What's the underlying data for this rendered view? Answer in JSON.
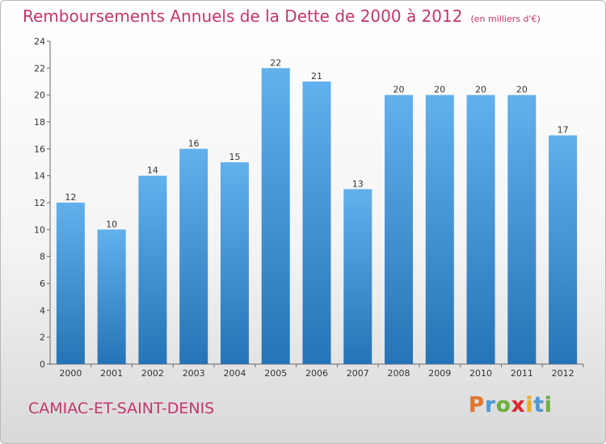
{
  "title": "Remboursements Annuels de la Dette de 2000 à 2012",
  "unit_note": "(en milliers d'€)",
  "commune": "CAMIAC-ET-SAINT-DENIS",
  "logo_text": "Proxiti",
  "logo_colors": [
    "#e8752a",
    "#4f9bd9",
    "#6bb33b",
    "#e0262b",
    "#f0b11d",
    "#4f9bd9",
    "#6bb33b"
  ],
  "colors": {
    "bar_top": "#62b0ec",
    "bar_bottom": "#2574b7",
    "axis_text": "#333333",
    "title": "#c2366f"
  },
  "chart_data": {
    "type": "bar",
    "categories": [
      "2000",
      "2001",
      "2002",
      "2003",
      "2004",
      "2005",
      "2006",
      "2007",
      "2008",
      "2009",
      "2010",
      "2011",
      "2012"
    ],
    "values": [
      12,
      10,
      14,
      16,
      15,
      22,
      21,
      13,
      20,
      20,
      20,
      20,
      17
    ],
    "data_labels": [
      "12",
      "10",
      "14",
      "16",
      "15",
      "22",
      "21",
      "13",
      "20",
      "20",
      "20",
      "20",
      "17"
    ],
    "y_ticks": [
      "0",
      "2",
      "4",
      "6",
      "8",
      "10",
      "12",
      "14",
      "16",
      "18",
      "20",
      "22",
      "24"
    ],
    "ylim": [
      0,
      24
    ],
    "grid": false,
    "xlabel": "",
    "ylabel": ""
  }
}
